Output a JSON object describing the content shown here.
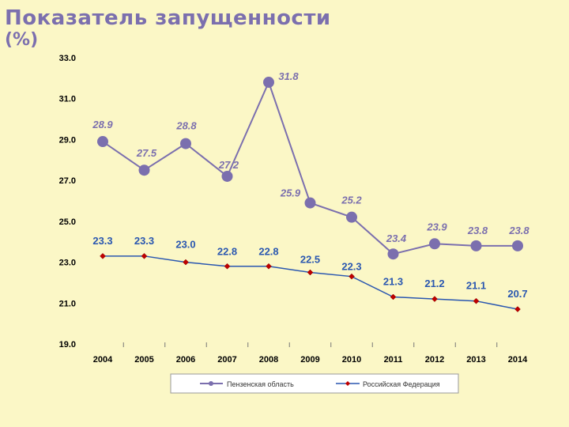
{
  "title": "Показатель запущенности",
  "subtitle": "(%)",
  "colors": {
    "series_region": "#7b6fae",
    "series_federation": "#2a57b0",
    "markers_federation": "#c00000",
    "background": "#fbf7c6"
  },
  "chart_data": {
    "type": "line",
    "title": "",
    "xlabel": "",
    "ylabel": "",
    "ylim": [
      19.0,
      33.0
    ],
    "yticks": [
      "19.0",
      "21.0",
      "23.0",
      "25.0",
      "27.0",
      "29.0",
      "31.0",
      "33.0"
    ],
    "categories": [
      "2004",
      "2005",
      "2006",
      "2007",
      "2008",
      "2009",
      "2010",
      "2011",
      "2012",
      "2013",
      "2014"
    ],
    "series": [
      {
        "name": "Пензенская область",
        "values": [
          28.9,
          27.5,
          28.8,
          27.2,
          31.8,
          25.9,
          25.2,
          23.4,
          23.9,
          23.8,
          23.8
        ],
        "labels": [
          "28.9",
          "27.5",
          "28.8",
          "27.2",
          "31.8",
          "25.9",
          "25.2",
          "23.4",
          "23.9",
          "23.8",
          "23.8"
        ]
      },
      {
        "name": "Российская Федерация",
        "values": [
          23.3,
          23.3,
          23.0,
          22.8,
          22.8,
          22.5,
          22.3,
          21.3,
          21.2,
          21.1,
          20.7
        ],
        "labels": [
          "23.3",
          "23.3",
          "23.0",
          "22.8",
          "22.8",
          "22.5",
          "22.3",
          "21.3",
          "21.2",
          "21.1",
          "20.7"
        ]
      }
    ],
    "grid": false,
    "legend_position": "bottom"
  }
}
